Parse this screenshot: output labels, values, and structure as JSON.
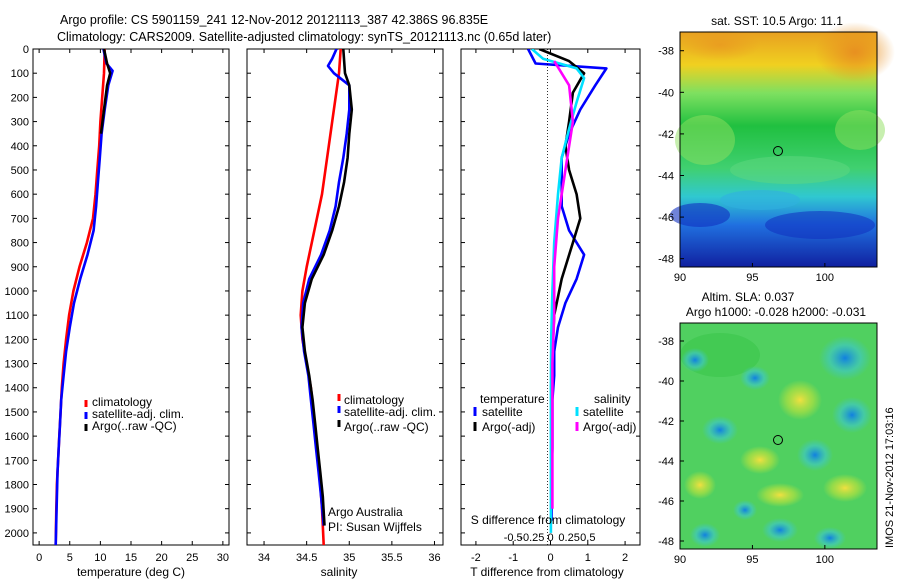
{
  "header": {
    "line1": "Argo profile: CS 5901159_241 12-Nov-2012 20121113_387 42.386S 96.835E",
    "line2": "Climatology: CARS2009. Satellite-adjusted climatology: synTS_20121113.nc (0.65d later)"
  },
  "colors": {
    "red": "#ff0000",
    "blue": "#0000ff",
    "black": "#000000",
    "cyan": "#00e0ff",
    "magenta": "#ff00ff"
  },
  "chart_data": [
    {
      "type": "line",
      "name": "temperature-panel",
      "xlabel": "temperature (deg C)",
      "xlim": [
        -1,
        31
      ],
      "ylim": [
        2050,
        0
      ],
      "xticks": [
        0,
        5,
        10,
        15,
        20,
        25,
        30
      ],
      "yticks": [
        0,
        100,
        200,
        300,
        400,
        500,
        600,
        700,
        800,
        900,
        1000,
        1100,
        1200,
        1300,
        1400,
        1500,
        1600,
        1700,
        1800,
        1900,
        2000
      ],
      "legend": [
        "climatology",
        "satellite-adj. clim.",
        "Argo(..raw -QC)"
      ],
      "series": [
        {
          "name": "climatology",
          "color": "red",
          "points": [
            [
              10.7,
              0
            ],
            [
              10.6,
              100
            ],
            [
              10.3,
              200
            ],
            [
              10.0,
              300
            ],
            [
              9.8,
              400
            ],
            [
              9.5,
              500
            ],
            [
              9.2,
              600
            ],
            [
              8.8,
              700
            ],
            [
              7.8,
              800
            ],
            [
              6.6,
              900
            ],
            [
              5.6,
              1000
            ],
            [
              4.9,
              1100
            ],
            [
              4.4,
              1200
            ],
            [
              4.0,
              1300
            ],
            [
              3.7,
              1400
            ],
            [
              3.5,
              1500
            ],
            [
              3.3,
              1600
            ],
            [
              3.1,
              1700
            ],
            [
              2.9,
              1800
            ],
            [
              2.8,
              1900
            ],
            [
              2.7,
              2050
            ]
          ]
        },
        {
          "name": "satellite-adj. clim.",
          "color": "blue",
          "points": [
            [
              10.5,
              0
            ],
            [
              11.0,
              60
            ],
            [
              12.0,
              90
            ],
            [
              11.3,
              150
            ],
            [
              10.7,
              250
            ],
            [
              10.2,
              350
            ],
            [
              9.9,
              450
            ],
            [
              9.6,
              550
            ],
            [
              9.3,
              650
            ],
            [
              8.9,
              750
            ],
            [
              7.9,
              850
            ],
            [
              6.7,
              950
            ],
            [
              5.7,
              1050
            ],
            [
              5.0,
              1150
            ],
            [
              4.4,
              1250
            ],
            [
              4.0,
              1350
            ],
            [
              3.6,
              1450
            ],
            [
              3.4,
              1550
            ],
            [
              3.2,
              1650
            ],
            [
              3.0,
              1750
            ],
            [
              2.9,
              1850
            ],
            [
              2.8,
              1950
            ],
            [
              2.7,
              2050
            ]
          ]
        },
        {
          "name": "Argo(..raw -QC)",
          "color": "black",
          "points": [
            [
              10.6,
              0
            ],
            [
              11.1,
              60
            ],
            [
              11.6,
              100
            ],
            [
              11.1,
              150
            ],
            [
              10.6,
              250
            ],
            [
              10.1,
              350
            ]
          ]
        }
      ]
    },
    {
      "type": "line",
      "name": "salinity-panel",
      "xlabel": "salinity",
      "xlim": [
        33.8,
        36.1
      ],
      "ylim": [
        2050,
        0
      ],
      "xticks": [
        34,
        34.5,
        35,
        35.5,
        36
      ],
      "legend": [
        "climatology",
        "satellite-adj. clim.",
        "Argo(..raw -QC)"
      ],
      "annotation": [
        "Argo Australia",
        "PI: Susan Wijffels"
      ],
      "series": [
        {
          "name": "climatology",
          "color": "red",
          "points": [
            [
              34.9,
              0
            ],
            [
              34.88,
              100
            ],
            [
              34.84,
              200
            ],
            [
              34.8,
              300
            ],
            [
              34.76,
              400
            ],
            [
              34.72,
              500
            ],
            [
              34.68,
              600
            ],
            [
              34.62,
              700
            ],
            [
              34.56,
              800
            ],
            [
              34.5,
              900
            ],
            [
              34.45,
              1000
            ],
            [
              34.43,
              1100
            ],
            [
              34.45,
              1200
            ],
            [
              34.5,
              1300
            ],
            [
              34.55,
              1400
            ],
            [
              34.58,
              1500
            ],
            [
              34.6,
              1600
            ],
            [
              34.63,
              1700
            ],
            [
              34.66,
              1800
            ],
            [
              34.68,
              1900
            ],
            [
              34.7,
              2050
            ]
          ]
        },
        {
          "name": "satellite-adj. clim.",
          "color": "blue",
          "points": [
            [
              34.85,
              0
            ],
            [
              34.8,
              40
            ],
            [
              34.75,
              70
            ],
            [
              34.82,
              100
            ],
            [
              35.0,
              150
            ],
            [
              35.0,
              250
            ],
            [
              34.97,
              350
            ],
            [
              34.93,
              450
            ],
            [
              34.88,
              550
            ],
            [
              34.84,
              650
            ],
            [
              34.77,
              750
            ],
            [
              34.67,
              850
            ],
            [
              34.53,
              950
            ],
            [
              34.46,
              1050
            ],
            [
              34.44,
              1150
            ],
            [
              34.47,
              1250
            ],
            [
              34.52,
              1350
            ],
            [
              34.55,
              1450
            ],
            [
              34.58,
              1550
            ],
            [
              34.61,
              1650
            ],
            [
              34.64,
              1750
            ],
            [
              34.67,
              1850
            ],
            [
              34.7,
              1970
            ]
          ]
        },
        {
          "name": "Argo(..raw -QC)",
          "color": "black",
          "points": [
            [
              34.93,
              0
            ],
            [
              34.95,
              100
            ],
            [
              35.0,
              150
            ],
            [
              35.03,
              250
            ],
            [
              35.0,
              350
            ],
            [
              34.98,
              450
            ],
            [
              34.94,
              550
            ],
            [
              34.88,
              650
            ],
            [
              34.8,
              750
            ],
            [
              34.7,
              850
            ],
            [
              34.56,
              950
            ],
            [
              34.48,
              1050
            ],
            [
              34.45,
              1150
            ],
            [
              34.48,
              1250
            ],
            [
              34.53,
              1350
            ],
            [
              34.57,
              1450
            ],
            [
              34.6,
              1550
            ],
            [
              34.63,
              1650
            ],
            [
              34.66,
              1750
            ],
            [
              34.69,
              1850
            ],
            [
              34.71,
              1970
            ]
          ]
        }
      ]
    },
    {
      "type": "line",
      "name": "difference-panel",
      "xlabel": "T difference from climatology",
      "top_label": "S difference from climatology",
      "xlim": [
        -2.4,
        2.4
      ],
      "ylim": [
        2050,
        0
      ],
      "t_ticks": [
        -2,
        -1,
        0,
        1,
        2
      ],
      "s_tick_labels": [
        "-0.5",
        "-0.25",
        "0",
        "0.25",
        "0.5"
      ],
      "legend_groups": [
        {
          "title": "temperature",
          "items": [
            "satellite",
            "Argo(-adj)"
          ]
        },
        {
          "title": "salinity",
          "items": [
            "satellite",
            "Argo(-adj)"
          ]
        }
      ],
      "series": [
        {
          "name": "temperature satellite",
          "color": "blue",
          "points": [
            [
              -0.6,
              0
            ],
            [
              -0.4,
              60
            ],
            [
              1.5,
              80
            ],
            [
              1.2,
              150
            ],
            [
              0.8,
              250
            ],
            [
              0.5,
              350
            ],
            [
              0.3,
              450
            ],
            [
              0.3,
              550
            ],
            [
              0.3,
              650
            ],
            [
              0.5,
              750
            ],
            [
              0.9,
              850
            ],
            [
              0.7,
              950
            ],
            [
              0.4,
              1050
            ],
            [
              0.2,
              1150
            ],
            [
              0.1,
              1250
            ],
            [
              0.1,
              1350
            ],
            [
              0.05,
              1450
            ],
            [
              0.05,
              1550
            ],
            [
              0.05,
              1650
            ],
            [
              0.03,
              1750
            ],
            [
              0.03,
              1850
            ],
            [
              0.03,
              1950
            ]
          ]
        },
        {
          "name": "temperature Argo(-adj)",
          "color": "black",
          "points": [
            [
              -0.3,
              0
            ],
            [
              0.5,
              50
            ],
            [
              0.9,
              100
            ],
            [
              0.6,
              180
            ],
            [
              0.5,
              300
            ],
            [
              0.4,
              400
            ],
            [
              0.5,
              500
            ],
            [
              0.7,
              600
            ],
            [
              0.8,
              700
            ],
            [
              0.6,
              800
            ],
            [
              0.3,
              950
            ],
            [
              0.1,
              1100
            ],
            [
              0.05,
              1250
            ],
            [
              0.02,
              1400
            ]
          ]
        },
        {
          "name": "salinity satellite",
          "color": "cyan",
          "points": [
            [
              -0.5,
              0
            ],
            [
              -0.2,
              40
            ],
            [
              0.7,
              80
            ],
            [
              0.9,
              120
            ],
            [
              0.7,
              220
            ],
            [
              0.5,
              330
            ],
            [
              0.3,
              450
            ],
            [
              0.2,
              600
            ],
            [
              0.1,
              800
            ],
            [
              0.05,
              1000
            ],
            [
              0.02,
              1200
            ],
            [
              0.01,
              1400
            ],
            [
              0.01,
              1600
            ],
            [
              0.01,
              1800
            ],
            [
              0.01,
              2000
            ]
          ]
        },
        {
          "name": "salinity Argo(-adj)",
          "color": "magenta",
          "points": [
            [
              0.1,
              50
            ],
            [
              0.5,
              150
            ],
            [
              0.6,
              300
            ],
            [
              0.4,
              500
            ],
            [
              0.2,
              700
            ],
            [
              0.1,
              900
            ],
            [
              0.1,
              1100
            ],
            [
              0.05,
              1300
            ],
            [
              0.05,
              1500
            ],
            [
              0.05,
              1700
            ],
            [
              0.05,
              1900
            ]
          ]
        }
      ]
    }
  ],
  "maps": [
    {
      "title": "sat. SST: 10.5 Argo: 11.1",
      "yticks": [
        "-38",
        "-40",
        "-42",
        "-44",
        "-46",
        "-48"
      ],
      "xticks": [
        "90",
        "95",
        "100"
      ]
    },
    {
      "title1": "Altim. SLA: 0.037",
      "title2": "Argo h1000: -0.028 h2000: -0.031",
      "yticks": [
        "-38",
        "-40",
        "-42",
        "-44",
        "-46",
        "-48"
      ],
      "xticks": [
        "90",
        "95",
        "100"
      ]
    }
  ],
  "watermark": "IMOS 21-Nov-2012 17:03:16"
}
